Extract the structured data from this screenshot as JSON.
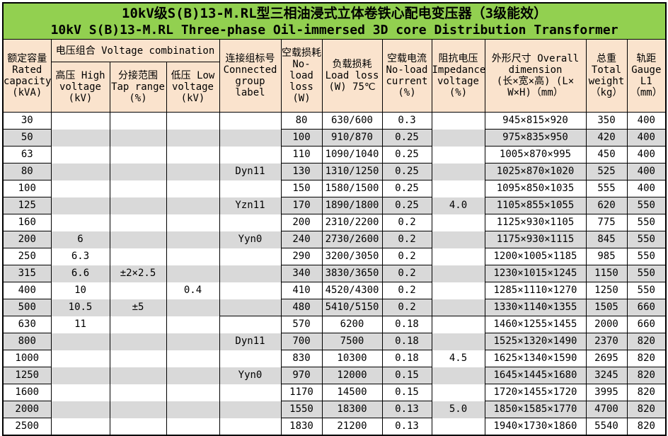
{
  "title": {
    "line1": "10kV级S(B)13-M.RL型三相油浸式立体卷铁心配电变压器（3级能效）",
    "line2": "10kV S(B)13-M.RL Three-phase Oil-immersed 3D core Distribution Transformer"
  },
  "colors": {
    "title_bg": "#92D050",
    "header_bg": "#FAE3CD",
    "stripe_bg": "#D9D9D9",
    "border_c": "#000000"
  },
  "header": {
    "capacity": "额定容量\nRated\ncapacity\n(kVA)",
    "voltage_combination": "电压组合 Voltage combination",
    "high_voltage": "高压 High\nvoltage\n(kV)",
    "tap_range": "分接范围\nTap range\n(%)",
    "low_voltage": "低压 Low\nvoltage\n(kV)",
    "connected_group": "连接组标号\nConnected\ngroup\nlabel",
    "no_load_loss": "空载损耗\nNo-load\nloss\n(W)",
    "load_loss": "负载损耗\nLoad loss\n(W) 75℃",
    "no_load_current": "空载电流\nNo-load\ncurrent\n(%)",
    "impedance_voltage": "阻抗电压\nImpedance\nvoltage\n(%)",
    "dimension": "外形尺寸 Overall\ndimension\n(长×宽×高) (L×\nW×H)（mm）",
    "total_weight": "总重\nTotal\nweight\n（kg）",
    "gauge": "轨距\nGauge\nL1\n（mm）"
  },
  "rows": [
    {
      "capacity": "30",
      "hv": "",
      "tap": "",
      "lv": "",
      "group": "",
      "noload": "80",
      "load": "630/600",
      "current": "0.3",
      "impedance": "",
      "dim": "945×815×920",
      "weight": "350",
      "gauge": "400"
    },
    {
      "capacity": "50",
      "hv": "",
      "tap": "",
      "lv": "",
      "group": "",
      "noload": "100",
      "load": "910/870",
      "current": "0.25",
      "impedance": "",
      "dim": "975×835×950",
      "weight": "420",
      "gauge": "400"
    },
    {
      "capacity": "63",
      "hv": "",
      "tap": "",
      "lv": "",
      "group": "",
      "noload": "110",
      "load": "1090/1040",
      "current": "0.25",
      "impedance": "",
      "dim": "1005×870×995",
      "weight": "450",
      "gauge": "400"
    },
    {
      "capacity": "80",
      "hv": "",
      "tap": "",
      "lv": "",
      "group": "Dyn11",
      "noload": "130",
      "load": "1310/1250",
      "current": "0.25",
      "impedance": "",
      "dim": "1025×870×1020",
      "weight": "525",
      "gauge": "400"
    },
    {
      "capacity": "100",
      "hv": "",
      "tap": "",
      "lv": "",
      "group": "",
      "noload": "150",
      "load": "1580/1500",
      "current": "0.25",
      "impedance": "",
      "dim": "1095×850×1035",
      "weight": "555",
      "gauge": "400"
    },
    {
      "capacity": "125",
      "hv": "",
      "tap": "",
      "lv": "",
      "group": "Yzn11",
      "noload": "170",
      "load": "1890/1800",
      "current": "0.25",
      "impedance": "4.0",
      "dim": "1105×855×1055",
      "weight": "620",
      "gauge": "550"
    },
    {
      "capacity": "160",
      "hv": "",
      "tap": "",
      "lv": "",
      "group": "",
      "noload": "200",
      "load": "2310/2200",
      "current": "0.2",
      "impedance": "",
      "dim": "1125×930×1105",
      "weight": "775",
      "gauge": "550"
    },
    {
      "capacity": "200",
      "hv": "6",
      "tap": "",
      "lv": "",
      "group": "Yyn0",
      "noload": "240",
      "load": "2730/2600",
      "current": "0.2",
      "impedance": "",
      "dim": "1175×930×1115",
      "weight": "845",
      "gauge": "550"
    },
    {
      "capacity": "250",
      "hv": "6.3",
      "tap": "",
      "lv": "",
      "group": "",
      "noload": "290",
      "load": "3200/3050",
      "current": "0.2",
      "impedance": "",
      "dim": "1200×1005×1185",
      "weight": "985",
      "gauge": "550"
    },
    {
      "capacity": "315",
      "hv": "6.6",
      "tap": "±2×2.5",
      "lv": "",
      "group": "",
      "noload": "340",
      "load": "3830/3650",
      "current": "0.2",
      "impedance": "",
      "dim": "1230×1015×1245",
      "weight": "1150",
      "gauge": "550"
    },
    {
      "capacity": "400",
      "hv": "10",
      "tap": "",
      "lv": "0.4",
      "group": "",
      "noload": "410",
      "load": "4520/4300",
      "current": "0.2",
      "impedance": "",
      "dim": "1285×1110×1270",
      "weight": "1250",
      "gauge": "550"
    },
    {
      "capacity": "500",
      "hv": "10.5",
      "tap": "±5",
      "lv": "",
      "group": "",
      "noload": "480",
      "load": "5410/5150",
      "current": "0.2",
      "impedance": "",
      "dim": "1330×1140×1355",
      "weight": "1505",
      "gauge": "660"
    },
    {
      "capacity": "630",
      "hv": "11",
      "tap": "",
      "lv": "",
      "group": "",
      "noload": "570",
      "load": "6200",
      "current": "0.18",
      "impedance": "",
      "dim": "1460×1255×1455",
      "weight": "2000",
      "gauge": "660"
    },
    {
      "capacity": "800",
      "hv": "",
      "tap": "",
      "lv": "",
      "group": "Dyn11",
      "noload": "700",
      "load": "7500",
      "current": "0.18",
      "impedance": "",
      "dim": "1525×1320×1490",
      "weight": "2370",
      "gauge": "820"
    },
    {
      "capacity": "1000",
      "hv": "",
      "tap": "",
      "lv": "",
      "group": "",
      "noload": "830",
      "load": "10300",
      "current": "0.18",
      "impedance": "4.5",
      "dim": "1625×1340×1590",
      "weight": "2695",
      "gauge": "820"
    },
    {
      "capacity": "1250",
      "hv": "",
      "tap": "",
      "lv": "",
      "group": "Yyn0",
      "noload": "970",
      "load": "12000",
      "current": "0.15",
      "impedance": "",
      "dim": "1645×1445×1680",
      "weight": "3245",
      "gauge": "820"
    },
    {
      "capacity": "1600",
      "hv": "",
      "tap": "",
      "lv": "",
      "group": "",
      "noload": "1170",
      "load": "14500",
      "current": "0.15",
      "impedance": "",
      "dim": "1720×1455×1720",
      "weight": "3995",
      "gauge": "820"
    },
    {
      "capacity": "2000",
      "hv": "",
      "tap": "",
      "lv": "",
      "group": "",
      "noload": "1550",
      "load": "18300",
      "current": "0.13",
      "impedance": "5.0",
      "dim": "1850×1585×1770",
      "weight": "4700",
      "gauge": "820"
    },
    {
      "capacity": "2500",
      "hv": "",
      "tap": "",
      "lv": "",
      "group": "",
      "noload": "1830",
      "load": "21200",
      "current": "0.13",
      "impedance": "",
      "dim": "1940×1730×1860",
      "weight": "5540",
      "gauge": "820"
    }
  ],
  "layout_notes": {
    "section_divider_after_row_capacity": "500"
  }
}
